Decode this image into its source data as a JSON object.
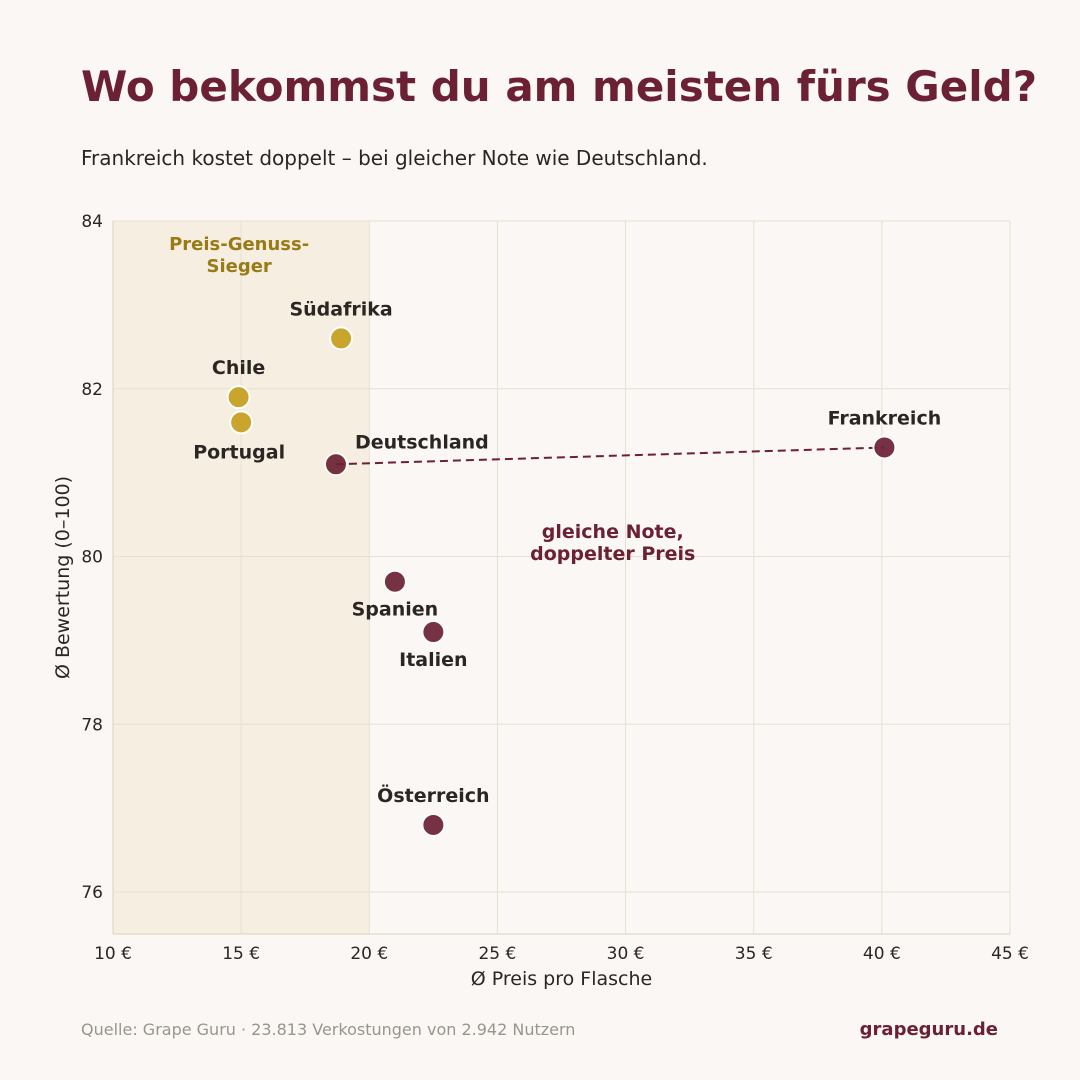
{
  "header": {
    "title": "Wo bekommst du am meisten fürs Geld?",
    "subtitle": "Frankreich kostet doppelt – bei gleicher Note wie Deutschland."
  },
  "footer": {
    "source": "Quelle: Grape Guru  ·  23.813 Verkostungen von 2.942 Nutzern",
    "brand": "grapeguru.de"
  },
  "colors": {
    "background": "#faf7f4",
    "highlight_band": "#f5eee1",
    "gold": "#c9a52e",
    "wine": "#6b2133",
    "gold_text": "#9a7a14",
    "grid": "#e6e1d3",
    "text": "#2b2623"
  },
  "chart_data": {
    "type": "scatter",
    "xlabel": "Ø Preis pro Flasche",
    "ylabel": "Ø Bewertung (0–100)",
    "xlim": [
      10,
      45
    ],
    "ylim": [
      75.5,
      84
    ],
    "x_ticks": [
      10,
      15,
      20,
      25,
      30,
      35,
      40,
      45
    ],
    "x_tick_labels": [
      "10 €",
      "15 €",
      "20 €",
      "25 €",
      "30 €",
      "35 €",
      "40 €",
      "45 €"
    ],
    "y_ticks": [
      76,
      78,
      80,
      82,
      84
    ],
    "y_tick_labels": [
      "76",
      "78",
      "80",
      "82",
      "84"
    ],
    "grid": true,
    "highlight_region": {
      "x_range": [
        10,
        20
      ],
      "label": "Preis-Genuss-\nSieger"
    },
    "points": [
      {
        "name": "Südafrika",
        "x": 18.9,
        "y": 82.6,
        "group": "gold",
        "label_pos": "above"
      },
      {
        "name": "Chile",
        "x": 14.9,
        "y": 81.9,
        "group": "gold",
        "label_pos": "above"
      },
      {
        "name": "Portugal",
        "x": 15.0,
        "y": 81.6,
        "group": "gold",
        "label_pos": "below-left"
      },
      {
        "name": "Deutschland",
        "x": 18.7,
        "y": 81.1,
        "group": "wine",
        "label_pos": "above-right"
      },
      {
        "name": "Frankreich",
        "x": 40.1,
        "y": 81.3,
        "group": "wine",
        "label_pos": "above"
      },
      {
        "name": "Spanien",
        "x": 21.0,
        "y": 79.7,
        "group": "wine",
        "label_pos": "below"
      },
      {
        "name": "Italien",
        "x": 22.5,
        "y": 79.1,
        "group": "wine",
        "label_pos": "below"
      },
      {
        "name": "Österreich",
        "x": 22.5,
        "y": 76.8,
        "group": "wine",
        "label_pos": "above"
      }
    ],
    "connector": {
      "from": "Deutschland",
      "to": "Frankreich",
      "style": "dashed"
    },
    "annotations": [
      {
        "text": "gleiche Note,\ndoppelter Preis",
        "x": 29.5,
        "y": 80.2
      }
    ]
  }
}
